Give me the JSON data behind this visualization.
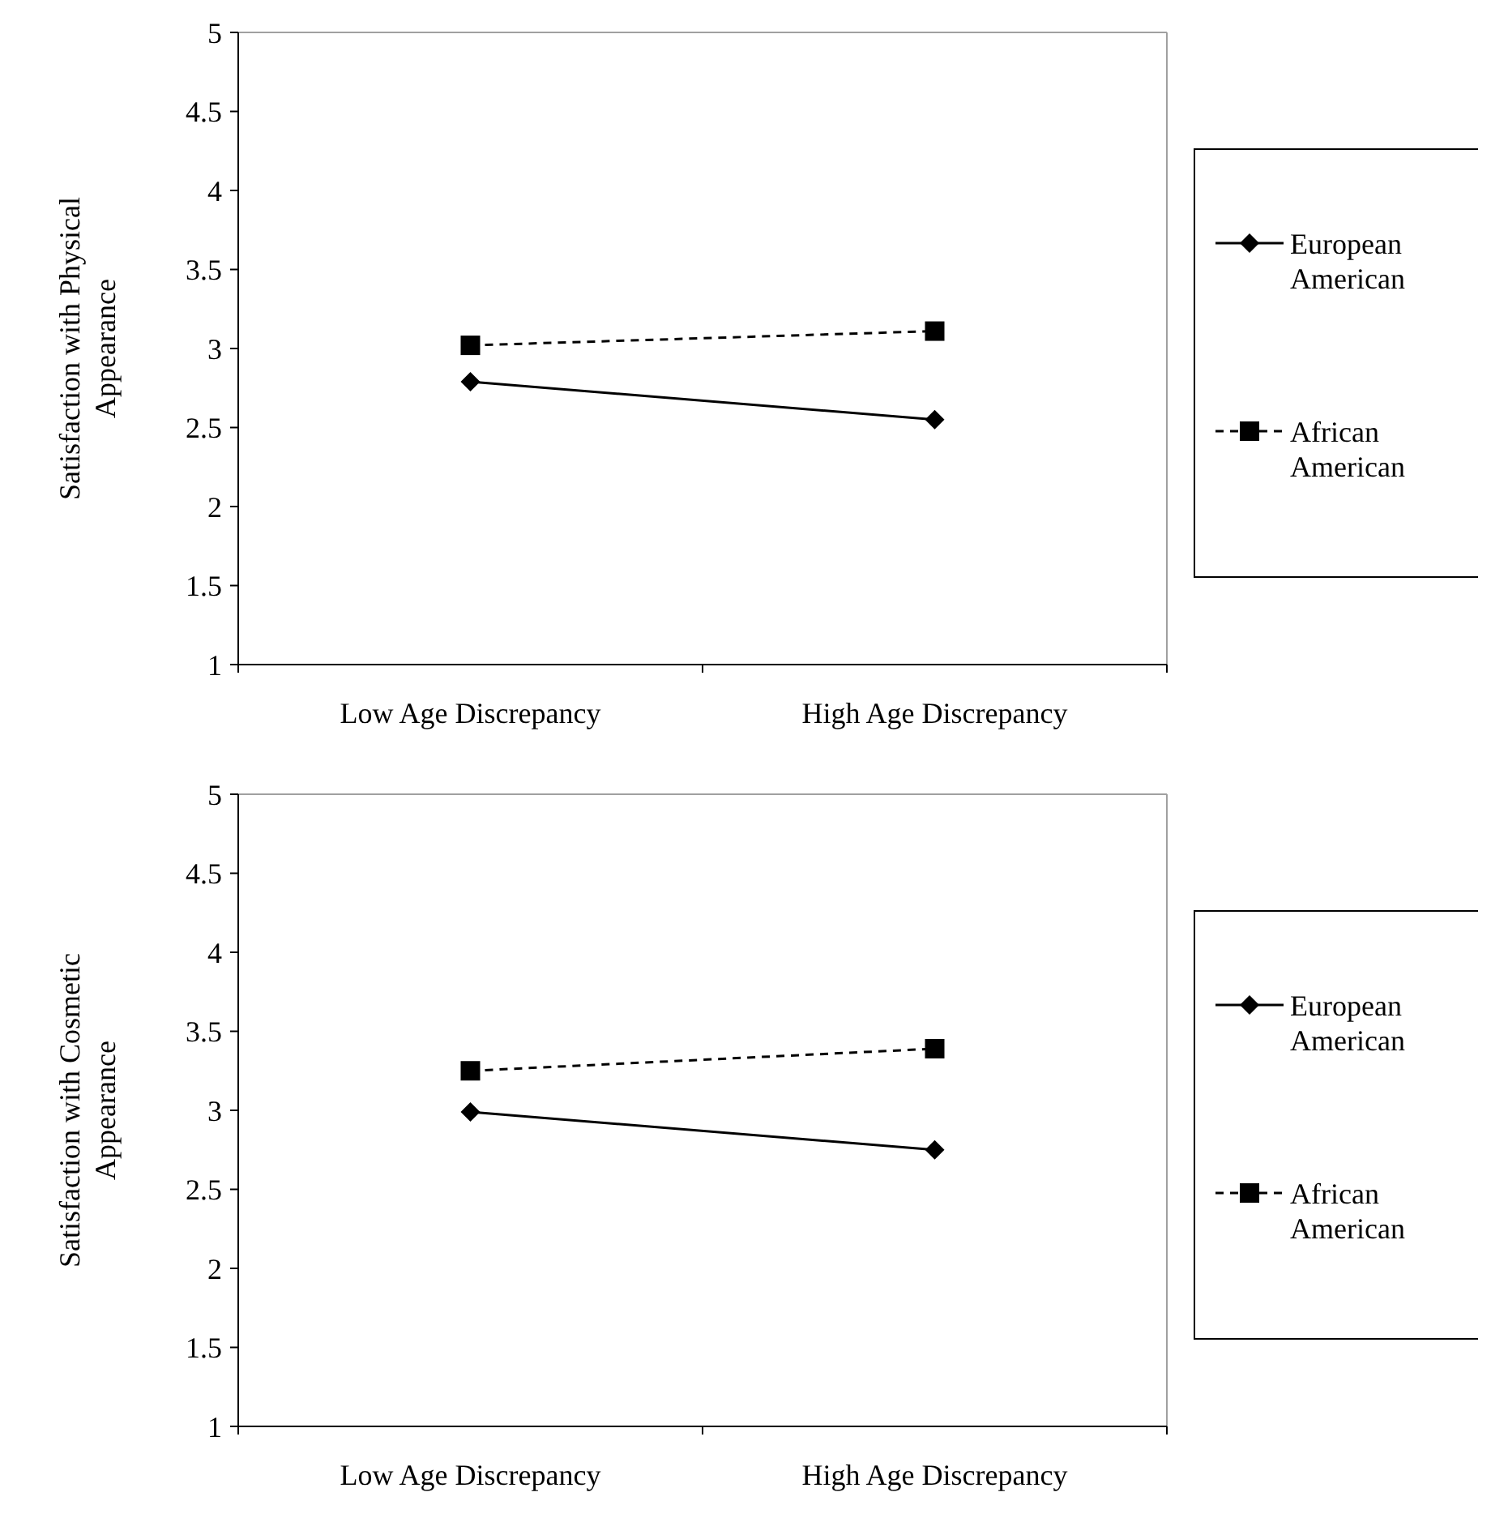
{
  "chart_data": [
    {
      "type": "line",
      "ylabel": "Satisfaction with Physical Appearance",
      "categories": [
        "Low Age Discrepancy",
        "High Age Discrepancy"
      ],
      "ylim": [
        1,
        5
      ],
      "yticks": [
        1,
        1.5,
        2,
        2.5,
        3,
        3.5,
        4,
        4.5,
        5
      ],
      "grid": false,
      "legend": "right",
      "series": [
        {
          "name": "European American",
          "color": "#000000",
          "values": [
            2.79,
            2.55
          ],
          "marker": "diamond",
          "line_style": "solid"
        },
        {
          "name": "African American",
          "color": "#000000",
          "values": [
            3.02,
            3.11
          ],
          "marker": "square",
          "line_style": "dashed"
        }
      ]
    },
    {
      "type": "line",
      "ylabel": "Satisfaction with Cosmetic Appearance",
      "categories": [
        "Low Age Discrepancy",
        "High Age Discrepancy"
      ],
      "ylim": [
        1,
        5
      ],
      "yticks": [
        1,
        1.5,
        2,
        2.5,
        3,
        3.5,
        4,
        4.5,
        5
      ],
      "grid": false,
      "legend": "right",
      "series": [
        {
          "name": "European American",
          "color": "#000000",
          "values": [
            2.99,
            2.75
          ],
          "marker": "diamond",
          "line_style": "solid"
        },
        {
          "name": "African American",
          "color": "#000000",
          "values": [
            3.25,
            3.39
          ],
          "marker": "square",
          "line_style": "dashed"
        }
      ]
    }
  ]
}
